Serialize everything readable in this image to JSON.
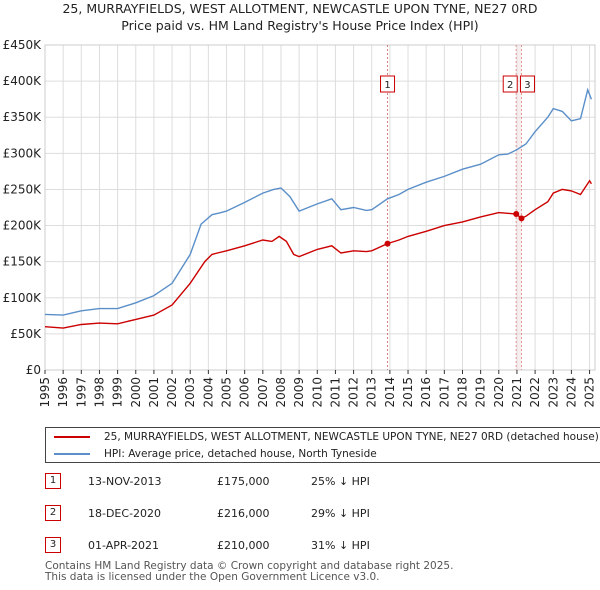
{
  "title": {
    "line1": "25, MURRAYFIELDS, WEST ALLOTMENT, NEWCASTLE UPON TYNE, NE27 0RD",
    "line2": "Price paid vs. HM Land Registry's House Price Index (HPI)"
  },
  "chart_data": {
    "type": "line",
    "x_range": [
      1995,
      2025.3
    ],
    "ylim": [
      0,
      450000
    ],
    "yticks": [
      {
        "v": 0,
        "label": "£0"
      },
      {
        "v": 50000,
        "label": "£50K"
      },
      {
        "v": 100000,
        "label": "£100K"
      },
      {
        "v": 150000,
        "label": "£150K"
      },
      {
        "v": 200000,
        "label": "£200K"
      },
      {
        "v": 250000,
        "label": "£250K"
      },
      {
        "v": 300000,
        "label": "£300K"
      },
      {
        "v": 350000,
        "label": "£350K"
      },
      {
        "v": 400000,
        "label": "£400K"
      },
      {
        "v": 450000,
        "label": "£450K"
      }
    ],
    "xticks": [
      "1995",
      "1996",
      "1997",
      "1998",
      "1999",
      "2000",
      "2001",
      "2002",
      "2003",
      "2004",
      "2005",
      "2006",
      "2007",
      "2008",
      "2009",
      "2010",
      "2011",
      "2012",
      "2013",
      "2014",
      "2015",
      "2016",
      "2017",
      "2018",
      "2019",
      "2020",
      "2021",
      "2022",
      "2023",
      "2024",
      "2025"
    ],
    "series": [
      {
        "name": "25, MURRAYFIELDS, WEST ALLOTMENT, NEWCASTLE UPON TYNE, NE27 0RD (detached house)",
        "color": "#cc0000",
        "points": [
          [
            1995,
            60000
          ],
          [
            1996,
            58000
          ],
          [
            1997,
            63000
          ],
          [
            1998,
            65000
          ],
          [
            1999,
            64000
          ],
          [
            2000,
            70000
          ],
          [
            2001,
            76000
          ],
          [
            2002,
            90000
          ],
          [
            2003,
            120000
          ],
          [
            2003.8,
            150000
          ],
          [
            2004.2,
            160000
          ],
          [
            2004.5,
            162000
          ],
          [
            2005,
            165000
          ],
          [
            2006,
            172000
          ],
          [
            2007,
            180000
          ],
          [
            2007.5,
            178000
          ],
          [
            2007.9,
            185000
          ],
          [
            2008.3,
            178000
          ],
          [
            2008.7,
            160000
          ],
          [
            2009,
            157000
          ],
          [
            2010,
            167000
          ],
          [
            2010.8,
            172000
          ],
          [
            2011.3,
            162000
          ],
          [
            2012,
            165000
          ],
          [
            2012.7,
            164000
          ],
          [
            2013,
            165000
          ],
          [
            2013.87,
            175000
          ],
          [
            2014.5,
            180000
          ],
          [
            2015,
            185000
          ],
          [
            2016,
            192000
          ],
          [
            2017,
            200000
          ],
          [
            2018,
            205000
          ],
          [
            2019,
            212000
          ],
          [
            2020,
            218000
          ],
          [
            2020.96,
            216000
          ],
          [
            2021.25,
            210000
          ],
          [
            2021.5,
            213000
          ],
          [
            2022,
            222000
          ],
          [
            2022.7,
            233000
          ],
          [
            2023,
            245000
          ],
          [
            2023.5,
            250000
          ],
          [
            2024,
            248000
          ],
          [
            2024.5,
            243000
          ],
          [
            2025,
            262000
          ],
          [
            2025.1,
            258000
          ]
        ]
      },
      {
        "name": "HPI: Average price, detached house, North Tyneside",
        "color": "#5b8fc9",
        "points": [
          [
            1995,
            77000
          ],
          [
            1996,
            76000
          ],
          [
            1997,
            82000
          ],
          [
            1998,
            85000
          ],
          [
            1999,
            85000
          ],
          [
            2000,
            93000
          ],
          [
            2001,
            103000
          ],
          [
            2002,
            120000
          ],
          [
            2003,
            160000
          ],
          [
            2003.6,
            202000
          ],
          [
            2004.2,
            215000
          ],
          [
            2004.7,
            218000
          ],
          [
            2005,
            220000
          ],
          [
            2006,
            232000
          ],
          [
            2007,
            245000
          ],
          [
            2007.6,
            250000
          ],
          [
            2008,
            252000
          ],
          [
            2008.5,
            240000
          ],
          [
            2009,
            220000
          ],
          [
            2010,
            230000
          ],
          [
            2010.8,
            237000
          ],
          [
            2011.3,
            222000
          ],
          [
            2012,
            225000
          ],
          [
            2012.7,
            221000
          ],
          [
            2013,
            222000
          ],
          [
            2013.87,
            237000
          ],
          [
            2014.5,
            243000
          ],
          [
            2015,
            250000
          ],
          [
            2016,
            260000
          ],
          [
            2017,
            268000
          ],
          [
            2018,
            278000
          ],
          [
            2019,
            285000
          ],
          [
            2020,
            298000
          ],
          [
            2020.5,
            299000
          ],
          [
            2021,
            305000
          ],
          [
            2021.5,
            313000
          ],
          [
            2022,
            330000
          ],
          [
            2022.7,
            350000
          ],
          [
            2023,
            362000
          ],
          [
            2023.5,
            358000
          ],
          [
            2024,
            345000
          ],
          [
            2024.5,
            348000
          ],
          [
            2024.9,
            388000
          ],
          [
            2025.1,
            375000
          ]
        ]
      }
    ],
    "markers": [
      {
        "label": "1",
        "x": 2013.87
      },
      {
        "label": "2",
        "x": 2020.96
      },
      {
        "label": "3",
        "x": 2021.25
      }
    ]
  },
  "legend": {
    "red_label": "25, MURRAYFIELDS, WEST ALLOTMENT, NEWCASTLE UPON TYNE, NE27 0RD (detached house)",
    "blue_label": "HPI: Average price, detached house, North Tyneside"
  },
  "sales": [
    {
      "num": "1",
      "date": "13-NOV-2013",
      "price": "£175,000",
      "hpi": "25% ↓ HPI"
    },
    {
      "num": "2",
      "date": "18-DEC-2020",
      "price": "£216,000",
      "hpi": "29% ↓ HPI"
    },
    {
      "num": "3",
      "date": "01-APR-2021",
      "price": "£210,000",
      "hpi": "31% ↓ HPI"
    }
  ],
  "footer": {
    "line1": "Contains HM Land Registry data © Crown copyright and database right 2025.",
    "line2": "This data is licensed under the Open Government Licence v3.0."
  }
}
